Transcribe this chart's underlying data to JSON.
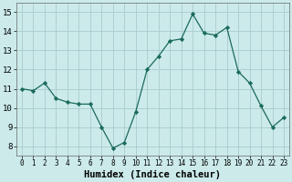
{
  "x": [
    0,
    1,
    2,
    3,
    4,
    5,
    6,
    7,
    8,
    9,
    10,
    11,
    12,
    13,
    14,
    15,
    16,
    17,
    18,
    19,
    20,
    21,
    22,
    23
  ],
  "y": [
    11.0,
    10.9,
    11.3,
    10.5,
    10.3,
    10.2,
    10.2,
    9.0,
    7.9,
    8.2,
    9.8,
    12.0,
    12.7,
    13.5,
    13.6,
    14.9,
    13.9,
    13.8,
    14.2,
    11.9,
    11.3,
    10.1,
    9.0,
    9.5
  ],
  "line_color": "#1a6b5a",
  "marker": "D",
  "marker_size": 2.2,
  "bg_color": "#cceaea",
  "grid_color": "#aacccc",
  "xlabel": "Humidex (Indice chaleur)",
  "xlabel_fontsize": 7.5,
  "ytick_fontsize": 6.5,
  "xtick_fontsize": 5.5,
  "yticks": [
    8,
    9,
    10,
    11,
    12,
    13,
    14,
    15
  ],
  "xticks": [
    0,
    1,
    2,
    3,
    4,
    5,
    6,
    7,
    8,
    9,
    10,
    11,
    12,
    13,
    14,
    15,
    16,
    17,
    18,
    19,
    20,
    21,
    22,
    23
  ],
  "ylim": [
    7.5,
    15.5
  ],
  "xlim": [
    -0.5,
    23.5
  ]
}
